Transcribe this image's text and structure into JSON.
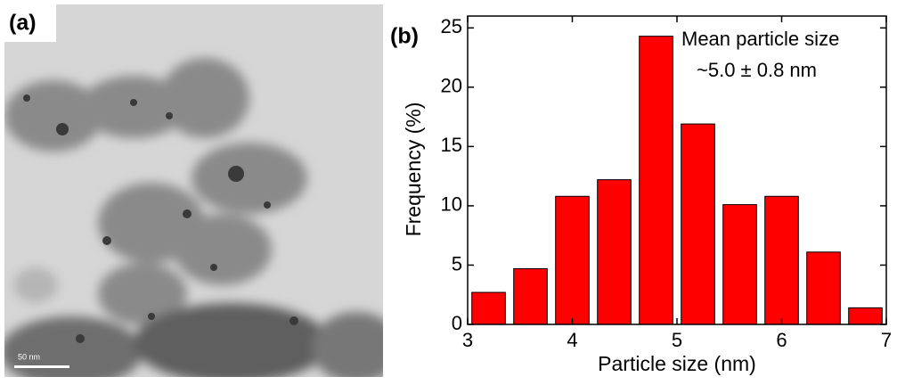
{
  "panel_a": {
    "label": "(a)",
    "scale_bar": "50 nm"
  },
  "chart_data": {
    "type": "histogram",
    "panel_label": "(b)",
    "bins": [
      3.0,
      3.4,
      3.8,
      4.2,
      4.6,
      5.0,
      5.4,
      5.8,
      6.2,
      6.6,
      7.0
    ],
    "values": [
      2.7,
      4.7,
      10.8,
      12.2,
      24.3,
      16.9,
      10.1,
      10.8,
      6.1,
      1.4
    ],
    "color": "#ff0000",
    "xlabel": "Particle size (nm)",
    "ylabel": "Frequency (%)",
    "xlim": [
      3,
      7
    ],
    "xticks": [
      3,
      4,
      5,
      6,
      7
    ],
    "ylim": [
      0,
      26
    ],
    "yticks": [
      0,
      5,
      10,
      15,
      20,
      25
    ],
    "annotations": [
      "Mean particle size",
      "~5.0 ± 0.8 nm"
    ]
  }
}
